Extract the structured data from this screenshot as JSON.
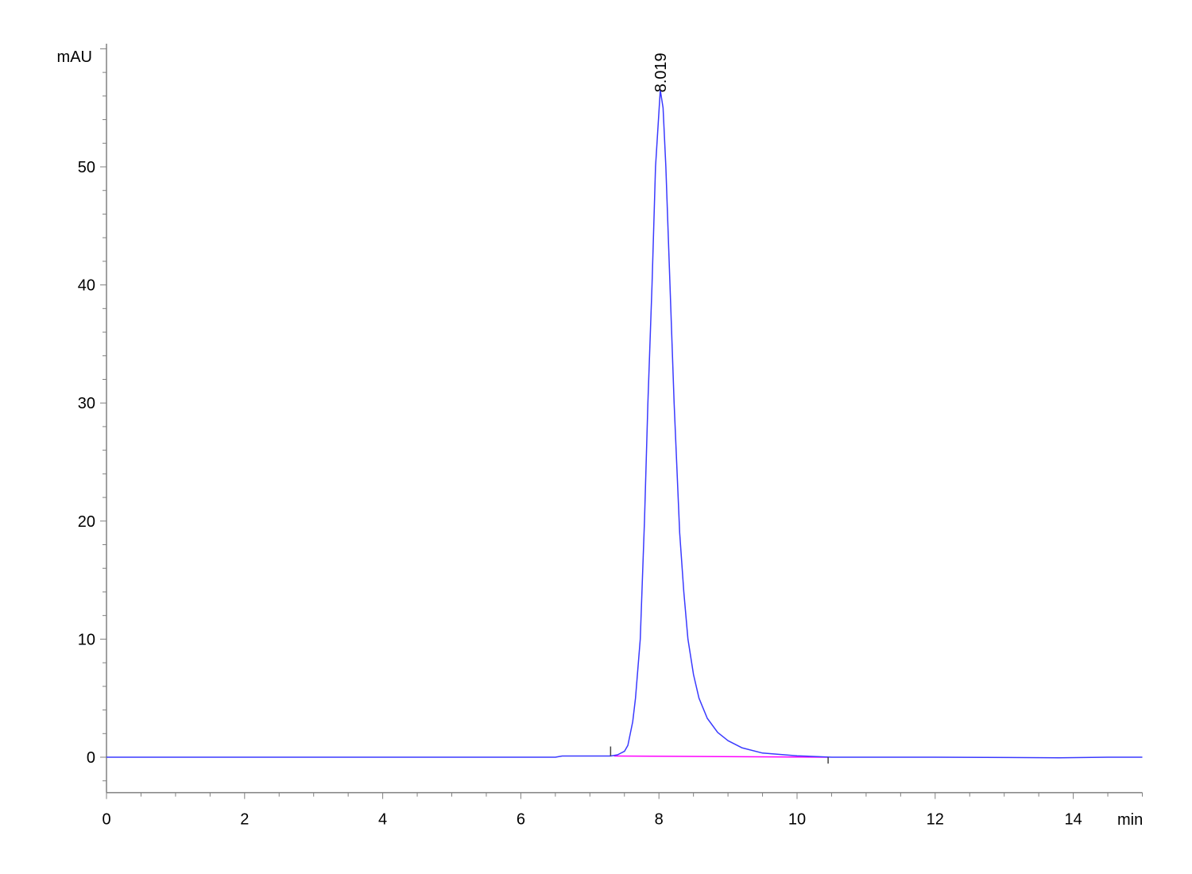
{
  "chart_data": {
    "type": "line",
    "title": "",
    "xlabel": "min",
    "ylabel": "mAU",
    "xlim": [
      0,
      15
    ],
    "ylim": [
      -3,
      60.5
    ],
    "x_ticks": [
      0,
      2,
      4,
      6,
      8,
      10,
      12,
      14
    ],
    "y_ticks": [
      0,
      10,
      20,
      30,
      40,
      50
    ],
    "grid": false,
    "legend": "none",
    "colors": {
      "trace": "#3a3aff",
      "baseline": "#ff00ff",
      "axis": "#808080",
      "marker": "#444444"
    },
    "series": [
      {
        "points": [
          [
            0,
            0
          ],
          [
            6.5,
            0
          ],
          [
            6.6,
            0.1
          ],
          [
            7.3,
            0.1
          ],
          [
            7.4,
            0.2
          ],
          [
            7.5,
            0.5
          ],
          [
            7.55,
            1
          ],
          [
            7.62,
            3
          ],
          [
            7.66,
            5
          ],
          [
            7.73,
            10
          ],
          [
            7.79,
            20
          ],
          [
            7.84,
            30
          ],
          [
            7.9,
            40
          ],
          [
            7.95,
            50
          ],
          [
            8.02,
            56.5
          ],
          [
            8.06,
            55
          ],
          [
            8.1,
            50
          ],
          [
            8.16,
            40
          ],
          [
            8.22,
            30
          ],
          [
            8.3,
            19
          ],
          [
            8.36,
            14
          ],
          [
            8.42,
            10
          ],
          [
            8.5,
            7
          ],
          [
            8.58,
            5
          ],
          [
            8.7,
            3.3
          ],
          [
            8.85,
            2.1
          ],
          [
            9.0,
            1.4
          ],
          [
            9.2,
            0.8
          ],
          [
            9.5,
            0.35
          ],
          [
            10,
            0.12
          ],
          [
            10.5,
            0
          ],
          [
            12,
            0
          ],
          [
            13.8,
            -0.05
          ],
          [
            14.5,
            0
          ],
          [
            15,
            0
          ]
        ]
      }
    ],
    "integration_baseline": [
      [
        7.35,
        0.1
      ],
      [
        10.45,
        0
      ]
    ],
    "peak_markers": [
      7.3,
      10.45
    ],
    "annotations": [
      {
        "x": 8.019,
        "y": 56.5,
        "text": "8.019"
      }
    ]
  }
}
